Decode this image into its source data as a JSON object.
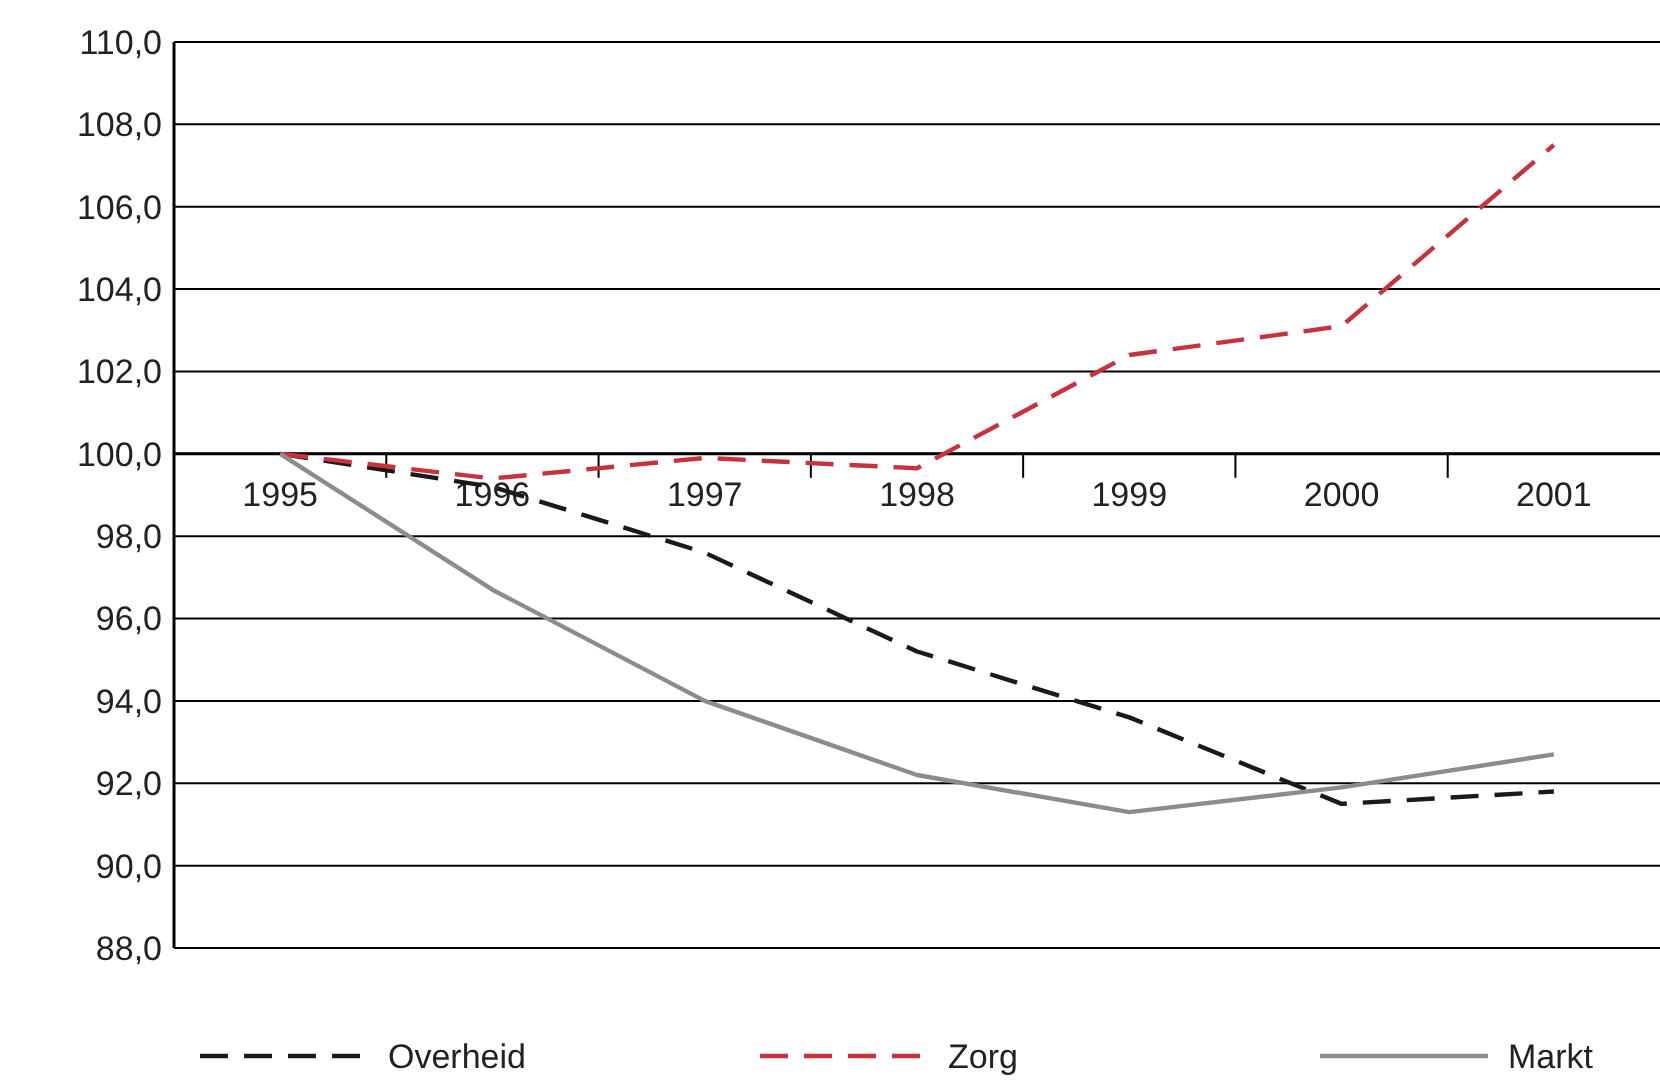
{
  "chart_data": {
    "type": "line",
    "categories": [
      "1995",
      "1996",
      "1997",
      "1998",
      "1999",
      "2000",
      "2001"
    ],
    "series": [
      {
        "name": "Overheid",
        "color": "#1a1a1a",
        "line_style": "dashed",
        "values": [
          100,
          99.2,
          97.6,
          95.2,
          93.6,
          91.5,
          91.8
        ]
      },
      {
        "name": "Zorg",
        "color": "#c8323c",
        "line_style": "dashed",
        "values": [
          100,
          99.4,
          99.9,
          99.65,
          102.4,
          103.1,
          107.5
        ]
      },
      {
        "name": "Markt",
        "color": "#8c8c8c",
        "line_style": "solid",
        "values": [
          100,
          96.7,
          94.0,
          92.2,
          91.3,
          91.9,
          92.7
        ]
      }
    ],
    "ylim": [
      88,
      110
    ],
    "yticks": [
      {
        "value": 88,
        "label": "88,0"
      },
      {
        "value": 90,
        "label": "90,0"
      },
      {
        "value": 92,
        "label": "92,0"
      },
      {
        "value": 94,
        "label": "94,0"
      },
      {
        "value": 96,
        "label": "96,0"
      },
      {
        "value": 98,
        "label": "98,0"
      },
      {
        "value": 100,
        "label": "100,0"
      },
      {
        "value": 102,
        "label": "102,0"
      },
      {
        "value": 104,
        "label": "104,0"
      },
      {
        "value": 106,
        "label": "106,0"
      },
      {
        "value": 108,
        "label": "108,0"
      },
      {
        "value": 110,
        "label": "110,0"
      }
    ],
    "grid": "y",
    "legend": "bottom"
  }
}
